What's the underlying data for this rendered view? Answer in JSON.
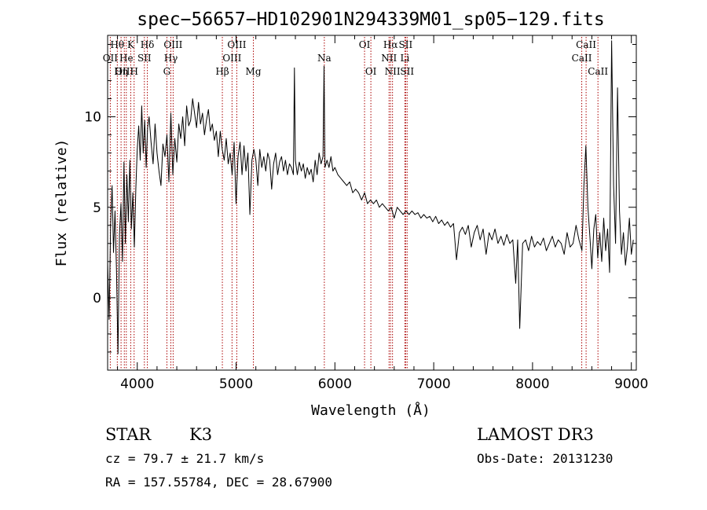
{
  "chart_data": {
    "type": "line",
    "title": "spec−56657−HD102901N294339M01_sp05−129.fits",
    "xlabel": "Wavelength (Å)",
    "ylabel": "Flux (relative)",
    "xlim": [
      3700,
      9050
    ],
    "ylim": [
      -4.0,
      14.5
    ],
    "x_ticks": [
      4000,
      5000,
      6000,
      7000,
      8000,
      9000
    ],
    "y_ticks": [
      0,
      5,
      10
    ],
    "grid": false,
    "legend": "none",
    "series": [
      {
        "x": [
          3700,
          3715,
          3730,
          3745,
          3760,
          3775,
          3790,
          3805,
          3820,
          3835,
          3850,
          3865,
          3880,
          3895,
          3910,
          3925,
          3940,
          3955,
          3970,
          3985,
          4000,
          4015,
          4030,
          4045,
          4060,
          4075,
          4090,
          4105,
          4120,
          4140,
          4160,
          4180,
          4200,
          4220,
          4240,
          4260,
          4280,
          4300,
          4320,
          4340,
          4360,
          4380,
          4400,
          4420,
          4440,
          4460,
          4480,
          4500,
          4520,
          4540,
          4560,
          4580,
          4600,
          4620,
          4640,
          4660,
          4680,
          4700,
          4720,
          4740,
          4760,
          4780,
          4800,
          4820,
          4840,
          4860,
          4880,
          4900,
          4920,
          4940,
          4960,
          4980,
          5000,
          5020,
          5040,
          5060,
          5080,
          5100,
          5120,
          5140,
          5160,
          5180,
          5200,
          5220,
          5240,
          5260,
          5280,
          5300,
          5320,
          5340,
          5360,
          5380,
          5400,
          5420,
          5440,
          5460,
          5480,
          5500,
          5520,
          5540,
          5560,
          5580,
          5590,
          5600,
          5620,
          5640,
          5660,
          5680,
          5700,
          5720,
          5740,
          5760,
          5780,
          5800,
          5820,
          5840,
          5860,
          5880,
          5890,
          5900,
          5920,
          5940,
          5960,
          5980,
          6000,
          6030,
          6060,
          6090,
          6120,
          6150,
          6180,
          6210,
          6240,
          6270,
          6300,
          6330,
          6360,
          6390,
          6420,
          6450,
          6480,
          6510,
          6540,
          6570,
          6600,
          6630,
          6660,
          6690,
          6720,
          6750,
          6780,
          6810,
          6840,
          6870,
          6900,
          6930,
          6960,
          6990,
          7020,
          7050,
          7080,
          7110,
          7140,
          7170,
          7200,
          7230,
          7260,
          7290,
          7320,
          7350,
          7380,
          7410,
          7440,
          7470,
          7500,
          7530,
          7560,
          7590,
          7620,
          7650,
          7680,
          7710,
          7740,
          7770,
          7800,
          7830,
          7850,
          7870,
          7900,
          7930,
          7960,
          7990,
          8020,
          8050,
          8080,
          8110,
          8140,
          8170,
          8200,
          8230,
          8260,
          8290,
          8320,
          8350,
          8380,
          8410,
          8440,
          8470,
          8500,
          8520,
          8540,
          8560,
          8580,
          8600,
          8620,
          8640,
          8660,
          8680,
          8700,
          8720,
          8740,
          8760,
          8780,
          8800,
          8820,
          8840,
          8860,
          8880,
          8900,
          8920,
          8940,
          8960,
          8980,
          9000,
          9020
        ],
        "y": [
          2.0,
          -1.2,
          4.0,
          6.2,
          2.5,
          4.8,
          1.5,
          -3.1,
          3.5,
          5.2,
          2.0,
          7.5,
          3.0,
          6.8,
          4.2,
          7.6,
          3.8,
          5.8,
          2.8,
          6.0,
          8.2,
          9.5,
          7.6,
          10.6,
          8.0,
          9.8,
          7.2,
          9.4,
          10.0,
          8.6,
          7.4,
          9.6,
          8.0,
          7.0,
          6.2,
          8.5,
          7.8,
          9.0,
          6.4,
          10.2,
          6.8,
          8.8,
          7.5,
          9.6,
          8.8,
          10.0,
          8.4,
          10.6,
          9.5,
          9.8,
          11.0,
          10.2,
          9.4,
          10.8,
          9.6,
          10.2,
          9.0,
          9.8,
          10.4,
          9.2,
          9.6,
          8.7,
          9.2,
          7.8,
          9.2,
          8.2,
          7.6,
          8.8,
          7.4,
          8.0,
          6.8,
          8.6,
          5.2,
          7.8,
          8.6,
          6.8,
          8.4,
          7.0,
          8.0,
          4.6,
          7.6,
          8.2,
          7.6,
          6.2,
          8.2,
          7.2,
          7.8,
          7.0,
          8.0,
          7.6,
          6.0,
          7.4,
          8.0,
          6.8,
          7.5,
          7.8,
          7.0,
          7.6,
          6.8,
          7.4,
          7.2,
          6.8,
          12.7,
          7.6,
          6.8,
          7.5,
          7.0,
          7.4,
          6.6,
          7.2,
          6.8,
          7.1,
          6.4,
          7.6,
          6.8,
          8.0,
          7.4,
          7.8,
          12.8,
          7.2,
          7.6,
          7.2,
          7.8,
          7.0,
          7.2,
          6.8,
          6.6,
          6.4,
          6.2,
          6.4,
          5.8,
          6.0,
          5.8,
          5.4,
          5.8,
          5.2,
          5.4,
          5.2,
          5.4,
          5.0,
          5.2,
          5.0,
          4.8,
          5.0,
          4.4,
          5.0,
          4.8,
          4.6,
          4.8,
          4.6,
          4.8,
          4.6,
          4.7,
          4.4,
          4.6,
          4.4,
          4.5,
          4.2,
          4.5,
          4.1,
          4.3,
          4.0,
          4.2,
          3.9,
          4.1,
          2.1,
          3.6,
          3.9,
          3.5,
          4.0,
          2.8,
          3.6,
          4.0,
          3.2,
          3.8,
          2.4,
          3.6,
          3.2,
          3.8,
          3.0,
          3.4,
          2.9,
          3.5,
          3.0,
          3.2,
          0.8,
          3.2,
          -1.7,
          3.0,
          3.2,
          2.6,
          3.4,
          2.8,
          3.1,
          2.9,
          3.3,
          2.6,
          3.0,
          3.4,
          2.8,
          3.2,
          3.0,
          2.4,
          3.6,
          2.8,
          3.0,
          4.0,
          3.2,
          2.6,
          6.2,
          8.4,
          5.0,
          3.4,
          1.6,
          3.8,
          4.6,
          2.2,
          3.6,
          2.0,
          4.4,
          2.6,
          3.8,
          1.4,
          14.2,
          6.2,
          3.0,
          11.6,
          4.8,
          2.4,
          3.6,
          1.8,
          2.8,
          4.4,
          2.4,
          3.2
        ]
      }
    ],
    "spectral_lines": [
      {
        "label": "OII",
        "wavelength": 3727,
        "row": 2
      },
      {
        "label": "Hθ",
        "wavelength": 3798,
        "row": 1
      },
      {
        "label": "OIII",
        "wavelength": 3869,
        "row": 3
      },
      {
        "label": "Hη",
        "wavelength": 3836,
        "row": 3
      },
      {
        "label": "He",
        "wavelength": 3889,
        "row": 2
      },
      {
        "label": "K",
        "wavelength": 3934,
        "row": 1
      },
      {
        "label": "H",
        "wavelength": 3968,
        "row": 3
      },
      {
        "label": "SII",
        "wavelength": 4072,
        "row": 2
      },
      {
        "label": "Hδ",
        "wavelength": 4102,
        "row": 1
      },
      {
        "label": "G",
        "wavelength": 4300,
        "row": 3
      },
      {
        "label": "Hγ",
        "wavelength": 4340,
        "row": 2
      },
      {
        "label": "OIII",
        "wavelength": 4363,
        "row": 1
      },
      {
        "label": "Hβ",
        "wavelength": 4861,
        "row": 3
      },
      {
        "label": "OIII",
        "wavelength": 4959,
        "row": 2
      },
      {
        "label": "OIII",
        "wavelength": 5007,
        "row": 1
      },
      {
        "label": "Mg",
        "wavelength": 5175,
        "row": 3
      },
      {
        "label": "Na",
        "wavelength": 5893,
        "row": 2
      },
      {
        "label": "OI",
        "wavelength": 6300,
        "row": 1
      },
      {
        "label": "OI",
        "wavelength": 6364,
        "row": 3
      },
      {
        "label": "NII",
        "wavelength": 6548,
        "row": 2
      },
      {
        "label": "NII",
        "wavelength": 6583,
        "row": 3
      },
      {
        "label": "Hα",
        "wavelength": 6563,
        "row": 1
      },
      {
        "label": "SII",
        "wavelength": 6716,
        "row": 1
      },
      {
        "label": "Li",
        "wavelength": 6708,
        "row": 2
      },
      {
        "label": "SII",
        "wavelength": 6731,
        "row": 3
      },
      {
        "label": "CaII",
        "wavelength": 8498,
        "row": 2
      },
      {
        "label": "CaII",
        "wavelength": 8542,
        "row": 1
      },
      {
        "label": "CaII",
        "wavelength": 8662,
        "row": 3
      }
    ],
    "line_color": "#aa0000"
  },
  "info": {
    "class": "STAR",
    "subclass": "K3",
    "survey": "LAMOST DR3",
    "cz": "cz = 79.7 ± 21.7 km/s",
    "obs_date": "Obs-Date: 20131230",
    "coords": "RA = 157.55784, DEC =  28.67900"
  }
}
